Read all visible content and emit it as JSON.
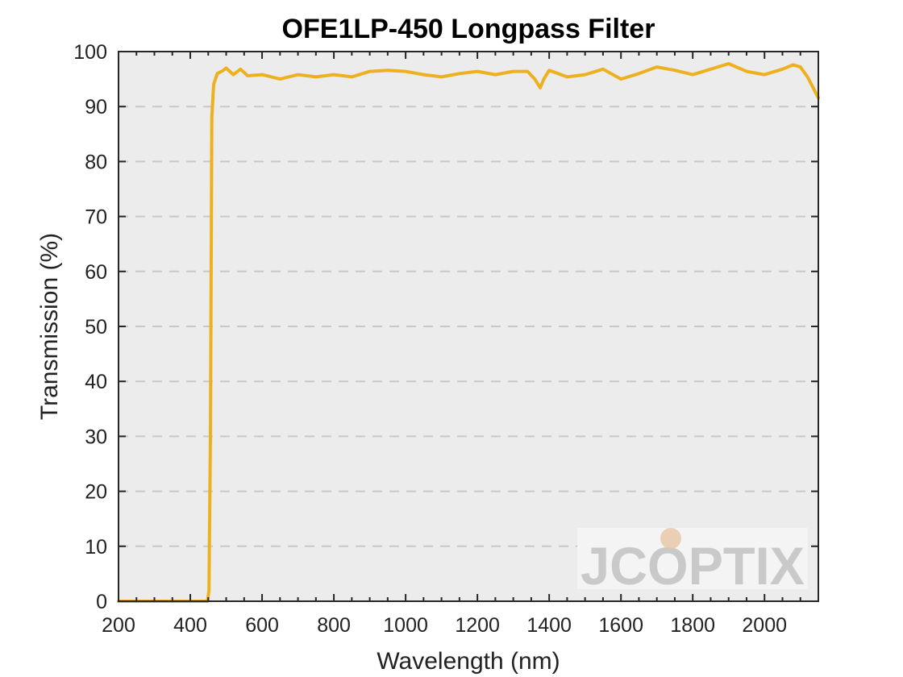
{
  "chart_data": {
    "type": "line",
    "title": "OFE1LP-450 Longpass Filter",
    "xlabel": "Wavelength (nm)",
    "ylabel": "Transmission (%)",
    "xlim": [
      200,
      2150
    ],
    "ylim": [
      0,
      100
    ],
    "xticks": [
      200,
      400,
      600,
      800,
      1000,
      1200,
      1400,
      1600,
      1800,
      2000
    ],
    "yticks": [
      0,
      10,
      20,
      30,
      40,
      50,
      60,
      70,
      80,
      90,
      100
    ],
    "grid": "horizontal dashed",
    "background": "#ececec",
    "series": [
      {
        "color": "#edb120",
        "x": [
          200,
          300,
          400,
          448,
          452,
          456,
          460,
          465,
          475,
          490,
          500,
          520,
          540,
          560,
          600,
          650,
          700,
          750,
          800,
          850,
          900,
          950,
          1000,
          1050,
          1100,
          1150,
          1200,
          1250,
          1300,
          1340,
          1360,
          1375,
          1385,
          1400,
          1450,
          1500,
          1550,
          1600,
          1650,
          1700,
          1750,
          1800,
          1850,
          1900,
          1950,
          2000,
          2050,
          2080,
          2100,
          2120,
          2150
        ],
        "y": [
          0,
          0,
          0,
          0,
          2,
          30,
          88,
          94,
          96,
          96.5,
          97,
          95.8,
          96.8,
          95.6,
          95.8,
          95,
          95.8,
          95.4,
          95.8,
          95.4,
          96.4,
          96.6,
          96.4,
          95.8,
          95.4,
          96,
          96.4,
          95.8,
          96.4,
          96.4,
          95,
          93.4,
          95,
          96.6,
          95.4,
          95.8,
          96.8,
          95,
          96,
          97.2,
          96.6,
          95.8,
          96.8,
          97.8,
          96.4,
          95.8,
          96.8,
          97.6,
          97.2,
          95.4,
          91.6
        ]
      }
    ]
  },
  "watermark": {
    "text": "JCOPTIX",
    "color": "#c9c9c9",
    "accent_color": "#e8c8a8"
  }
}
